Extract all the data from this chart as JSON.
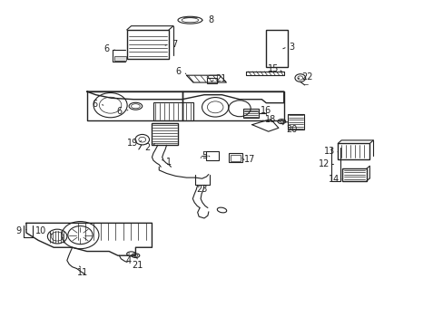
{
  "background_color": "#ffffff",
  "line_color": "#222222",
  "figure_width": 4.89,
  "figure_height": 3.6,
  "dpi": 100
}
